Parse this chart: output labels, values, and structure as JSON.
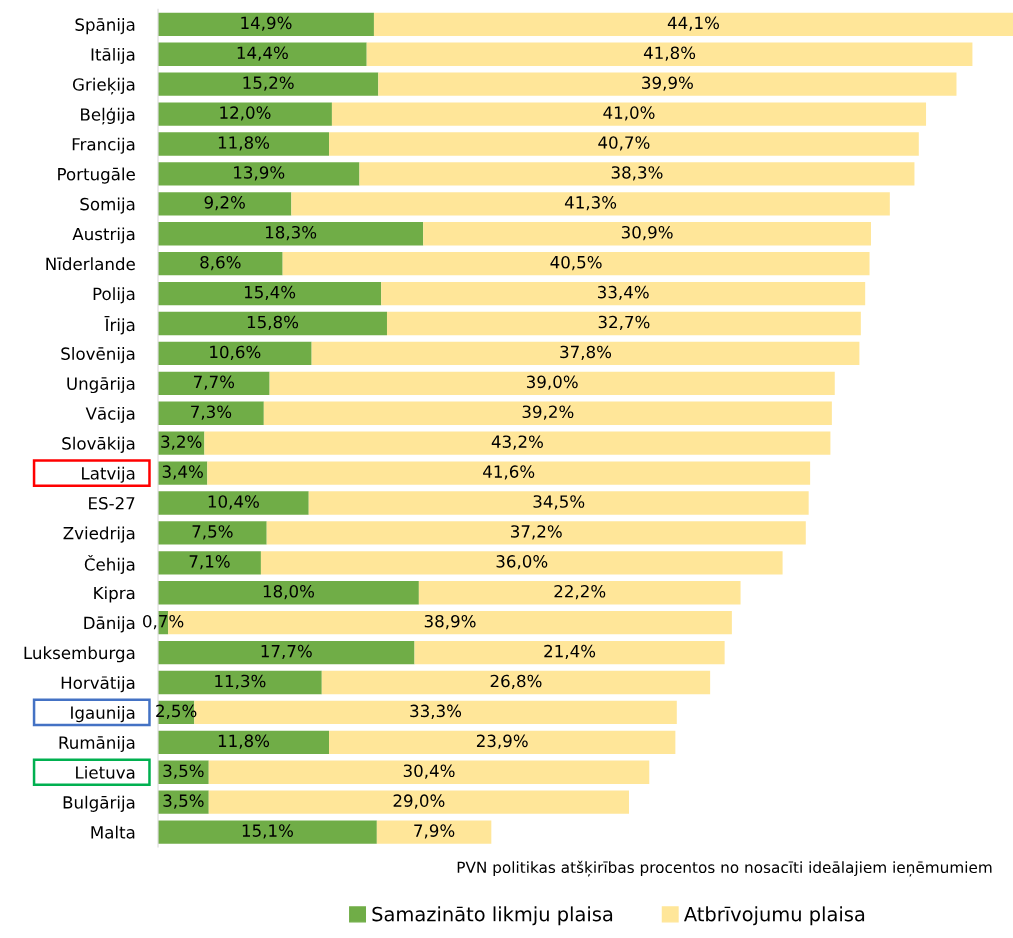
{
  "chart_data": {
    "type": "bar",
    "orientation": "horizontal",
    "stacked": true,
    "relative": false,
    "xlabel": "PVN politikas atšķirības procentos no nosacīti ideālajiem ieņēmumiem",
    "categories": [
      "Spānija",
      "Itālija",
      "Grieķija",
      "Beļģija",
      "Francija",
      "Portugāle",
      "Somija",
      "Austrija",
      "Nīderlande",
      "Polija",
      "Īrija",
      "Slovēnija",
      "Ungārija",
      "Vācija",
      "Slovākija",
      "Latvija",
      "ES-27",
      "Zviedrija",
      "Čehija",
      "Kipra",
      "Dānija",
      "Luksemburga",
      "Horvātija",
      "Igaunija",
      "Rumānija",
      "Lietuva",
      "Bulgārija",
      "Malta"
    ],
    "series": [
      {
        "name": "Samazināto likmju plaisa",
        "color": "#70ad47",
        "values": [
          14.9,
          14.4,
          15.2,
          12.0,
          11.8,
          13.9,
          9.2,
          18.3,
          8.6,
          15.4,
          15.8,
          10.6,
          7.7,
          7.3,
          3.2,
          3.4,
          10.4,
          7.5,
          7.1,
          18.0,
          0.7,
          17.7,
          11.3,
          2.5,
          11.8,
          3.5,
          3.5,
          15.1
        ],
        "value_labels": [
          "14,9%",
          "14,4%",
          "15,2%",
          "12,0%",
          "11,8%",
          "13,9%",
          "9,2%",
          "18,3%",
          "8,6%",
          "15,4%",
          "15,8%",
          "10,6%",
          "7,7%",
          "7,3%",
          "3,2%",
          "3,4%",
          "10,4%",
          "7,5%",
          "7,1%",
          "18,0%",
          "0,7%",
          "17,7%",
          "11,3%",
          "2,5%",
          "11,8%",
          "3,5%",
          "3,5%",
          "15,1%"
        ]
      },
      {
        "name": "Atbrīvojumu plaisa",
        "color": "#ffe699",
        "values": [
          44.1,
          41.8,
          39.9,
          41.0,
          40.7,
          38.3,
          41.3,
          30.9,
          40.5,
          33.4,
          32.7,
          37.8,
          39.0,
          39.2,
          43.2,
          41.6,
          34.5,
          37.2,
          36.0,
          22.2,
          38.9,
          21.4,
          26.8,
          33.3,
          23.9,
          30.4,
          29.0,
          7.9
        ],
        "value_labels": [
          "44,1%",
          "41,8%",
          "39,9%",
          "41,0%",
          "40,7%",
          "38,3%",
          "41,3%",
          "30,9%",
          "40,5%",
          "33,4%",
          "32,7%",
          "37,8%",
          "39,0%",
          "39,2%",
          "43,2%",
          "41,6%",
          "34,5%",
          "37,2%",
          "36,0%",
          "22,2%",
          "38,9%",
          "21,4%",
          "26,8%",
          "33,3%",
          "23,9%",
          "30,4%",
          "29,0%",
          "7,9%"
        ]
      }
    ],
    "legend": "bottom",
    "grid": false
  }
}
